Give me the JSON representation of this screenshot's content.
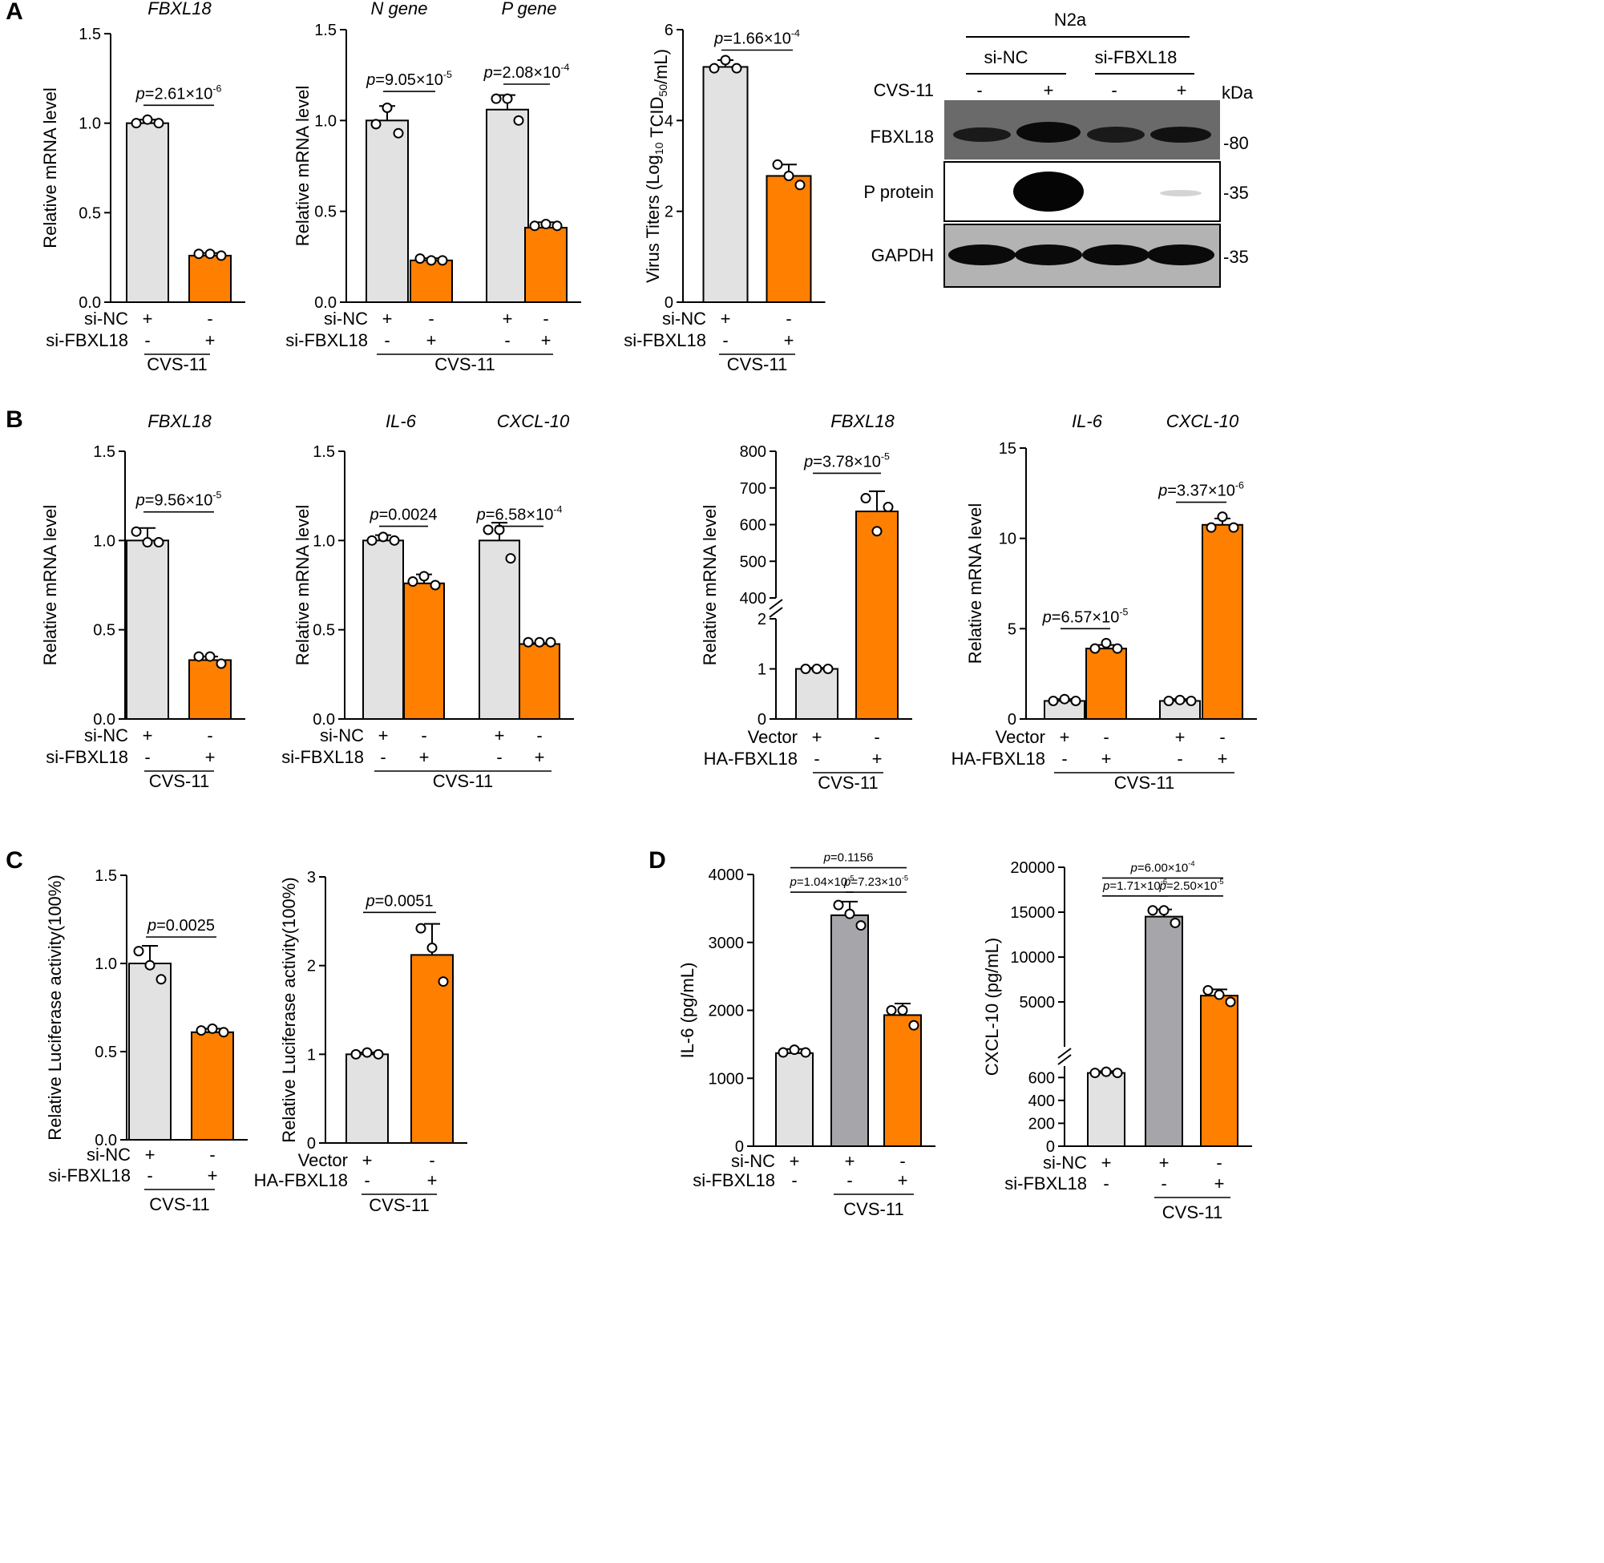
{
  "colors": {
    "gray": "#e2e2e2",
    "orange": "#ff7f00",
    "darkgray": "#a6a6aa",
    "axis": "#000000"
  },
  "panel_labels": [
    "A",
    "B",
    "C",
    "D"
  ],
  "chart_data": [
    {
      "id": "A1",
      "type": "bar",
      "title": "FBXL18",
      "ylabel": "Relative mRNA level",
      "ylim": [
        0,
        1.5
      ],
      "yticks": [
        "0.0",
        "0.5",
        "1.0",
        "1.5"
      ],
      "yticks_v": [
        0,
        0.5,
        1,
        1.5
      ],
      "bars": [
        {
          "value": 1.0,
          "err": 0.02,
          "color": "gray",
          "points": [
            1.0,
            1.02,
            1.0
          ]
        },
        {
          "value": 0.26,
          "err": 0.015,
          "color": "orange",
          "points": [
            0.27,
            0.27,
            0.26
          ]
        }
      ],
      "pvals": [
        {
          "from": 0,
          "to": 1,
          "y": 1.1,
          "t1": "p",
          "t2": "=2.61×10",
          "sup": "-6"
        }
      ],
      "rows": [
        {
          "label": "si-NC",
          "signs": [
            "+",
            "-"
          ]
        },
        {
          "label": "si-FBXL18",
          "signs": [
            "-",
            "+"
          ]
        }
      ],
      "group": "CVS-11"
    },
    {
      "id": "A2",
      "type": "bar",
      "titles": [
        "N gene",
        "P gene"
      ],
      "ylabel": "Relative mRNA level",
      "ylim": [
        0,
        1.5
      ],
      "yticks": [
        "0.0",
        "0.5",
        "1.0",
        "1.5"
      ],
      "yticks_v": [
        0,
        0.5,
        1,
        1.5
      ],
      "bars": [
        {
          "value": 1.0,
          "err": 0.08,
          "color": "gray",
          "points": [
            0.98,
            1.07,
            0.93
          ]
        },
        {
          "value": 0.23,
          "err": 0.012,
          "color": "orange",
          "points": [
            0.24,
            0.23,
            0.23
          ]
        },
        {
          "value": 1.06,
          "err": 0.08,
          "color": "gray",
          "points": [
            1.12,
            1.12,
            1.0
          ]
        },
        {
          "value": 0.41,
          "err": 0.03,
          "color": "orange",
          "points": [
            0.42,
            0.43,
            0.42
          ]
        }
      ],
      "pvals": [
        {
          "from": 0,
          "to": 1,
          "y": 1.16,
          "t1": "p",
          "t2": "=9.05×10",
          "sup": "-5"
        },
        {
          "from": 2,
          "to": 3,
          "y": 1.2,
          "t1": "p",
          "t2": "=2.08×10",
          "sup": "-4"
        }
      ],
      "rows": [
        {
          "label": "si-NC",
          "signs": [
            "+",
            "-",
            "+",
            "-"
          ]
        },
        {
          "label": "si-FBXL18",
          "signs": [
            "-",
            "+",
            "-",
            "+"
          ]
        }
      ],
      "group": "CVS-11"
    },
    {
      "id": "A3",
      "type": "bar",
      "ylabel_pre": "Virus Titers (Log",
      "ylabel_sub": "10",
      "ylabel_mid": " TCID",
      "ylabel_sub2": "50",
      "ylabel_post": "/mL)",
      "ylim": [
        0,
        6
      ],
      "yticks": [
        "0",
        "2",
        "4",
        "6"
      ],
      "yticks_v": [
        0,
        2,
        4,
        6
      ],
      "bars": [
        {
          "value": 5.18,
          "err": 0.15,
          "color": "gray",
          "points": [
            5.15,
            5.33,
            5.15
          ]
        },
        {
          "value": 2.78,
          "err": 0.25,
          "color": "orange",
          "points": [
            3.03,
            2.78,
            2.58
          ]
        }
      ],
      "pvals": [
        {
          "from": 0,
          "to": 1,
          "y": 5.55,
          "t1": "p",
          "t2": "=1.66×10",
          "sup": "-4"
        }
      ],
      "rows": [
        {
          "label": "si-NC",
          "signs": [
            "+",
            "-"
          ]
        },
        {
          "label": "si-FBXL18",
          "signs": [
            "-",
            "+"
          ]
        }
      ],
      "group": "CVS-11"
    },
    {
      "id": "B1",
      "type": "bar",
      "title": "FBXL18",
      "ylabel": "Relative mRNA level",
      "ylim": [
        0,
        1.5
      ],
      "yticks": [
        "0.0",
        "0.5",
        "1.0",
        "1.5"
      ],
      "yticks_v": [
        0,
        0.5,
        1,
        1.5
      ],
      "bars": [
        {
          "value": 1.0,
          "err": 0.07,
          "color": "gray",
          "points": [
            1.05,
            0.99,
            0.99
          ]
        },
        {
          "value": 0.33,
          "err": 0.02,
          "color": "orange",
          "points": [
            0.35,
            0.35,
            0.31
          ]
        }
      ],
      "pvals": [
        {
          "from": 0,
          "to": 1,
          "y": 1.16,
          "t1": "p",
          "t2": "=9.56×10",
          "sup": "-5"
        }
      ],
      "rows": [
        {
          "label": "si-NC",
          "signs": [
            "+",
            "-"
          ]
        },
        {
          "label": "si-FBXL18",
          "signs": [
            "-",
            "+"
          ]
        }
      ],
      "group": "CVS-11"
    },
    {
      "id": "B2",
      "type": "bar",
      "titles": [
        "IL-6",
        "CXCL-10"
      ],
      "ylabel": "Relative mRNA level",
      "ylim": [
        0,
        1.5
      ],
      "yticks": [
        "0.0",
        "0.5",
        "1.0",
        "1.5"
      ],
      "yticks_v": [
        0,
        0.5,
        1,
        1.5
      ],
      "bars": [
        {
          "value": 1.0,
          "err": 0.03,
          "color": "gray",
          "points": [
            1.0,
            1.02,
            1.0
          ]
        },
        {
          "value": 0.76,
          "err": 0.05,
          "color": "orange",
          "points": [
            0.77,
            0.8,
            0.75
          ]
        },
        {
          "value": 1.0,
          "err": 0.1,
          "color": "gray",
          "points": [
            1.06,
            1.06,
            0.9
          ]
        },
        {
          "value": 0.42,
          "err": 0.005,
          "color": "orange",
          "points": [
            0.43,
            0.43,
            0.43
          ]
        }
      ],
      "pvals": [
        {
          "from": 0,
          "to": 1,
          "y": 1.08,
          "t1": "p",
          "t2": "=0.0024",
          "sup": ""
        },
        {
          "from": 2,
          "to": 3,
          "y": 1.08,
          "t1": "p",
          "t2": "=6.58×10",
          "sup": "-4"
        }
      ],
      "rows": [
        {
          "label": "si-NC",
          "signs": [
            "+",
            "-",
            "+",
            "-"
          ]
        },
        {
          "label": "si-FBXL18",
          "signs": [
            "-",
            "+",
            "-",
            "+"
          ]
        }
      ],
      "group": "CVS-11"
    },
    {
      "id": "B3",
      "type": "bar",
      "title": "FBXL18",
      "ylabel": "Relative mRNA level",
      "broken_axis": true,
      "ylim_lower": [
        0,
        2
      ],
      "ylim_upper": [
        400,
        800
      ],
      "yticks": [
        "0",
        "1",
        "2",
        "400",
        "500",
        "600",
        "700",
        "800"
      ],
      "yticks_v": [
        0,
        1,
        2,
        400,
        500,
        600,
        700,
        800
      ],
      "bars": [
        {
          "value": 1.0,
          "err": 0.02,
          "color": "gray",
          "points": [
            1.0,
            1.0,
            1.0
          ]
        },
        {
          "value": 636,
          "err": 55,
          "color": "orange",
          "points": [
            672,
            582,
            648
          ]
        }
      ],
      "pvals": [
        {
          "from": 0,
          "to": 1,
          "y": 740,
          "t1": "p",
          "t2": "=3.78×10",
          "sup": "-5"
        }
      ],
      "rows": [
        {
          "label": "Vector",
          "signs": [
            "+",
            "-"
          ]
        },
        {
          "label": "HA-FBXL18",
          "signs": [
            "-",
            "+"
          ]
        }
      ],
      "group": "CVS-11"
    },
    {
      "id": "B4",
      "type": "bar",
      "titles": [
        "IL-6",
        "CXCL-10"
      ],
      "ylabel": "Relative mRNA level",
      "ylim": [
        0,
        15
      ],
      "yticks": [
        "0",
        "5",
        "10",
        "15"
      ],
      "yticks_v": [
        0,
        5,
        10,
        15
      ],
      "bars": [
        {
          "value": 1.0,
          "err": 0.1,
          "color": "gray",
          "points": [
            1.0,
            1.1,
            1.0
          ]
        },
        {
          "value": 3.9,
          "err": 0.2,
          "color": "orange",
          "points": [
            3.9,
            4.2,
            3.9
          ]
        },
        {
          "value": 1.0,
          "err": 0.1,
          "color": "gray",
          "points": [
            1.0,
            1.05,
            1.0
          ]
        },
        {
          "value": 10.75,
          "err": 0.35,
          "color": "orange",
          "points": [
            10.6,
            11.2,
            10.6
          ]
        }
      ],
      "pvals": [
        {
          "from": 0,
          "to": 1,
          "y": 5.0,
          "t1": "p",
          "t2": "=6.57×10",
          "sup": "-5"
        },
        {
          "from": 2,
          "to": 3,
          "y": 12.0,
          "t1": "p",
          "t2": "=3.37×10",
          "sup": "-6"
        }
      ],
      "rows": [
        {
          "label": "Vector",
          "signs": [
            "+",
            "-",
            "+",
            "-"
          ]
        },
        {
          "label": "HA-FBXL18",
          "signs": [
            "-",
            "+",
            "-",
            "+"
          ]
        }
      ],
      "group": "CVS-11"
    },
    {
      "id": "C1",
      "type": "bar",
      "ylabel": "Relative Luciferase activity(100%)",
      "ylim": [
        0,
        1.5
      ],
      "yticks": [
        "0.0",
        "0.5",
        "1.0",
        "1.5"
      ],
      "yticks_v": [
        0,
        0.5,
        1,
        1.5
      ],
      "bars": [
        {
          "value": 1.0,
          "err": 0.1,
          "color": "gray",
          "points": [
            1.07,
            0.99,
            0.91
          ]
        },
        {
          "value": 0.61,
          "err": 0.02,
          "color": "orange",
          "points": [
            0.62,
            0.63,
            0.61
          ]
        }
      ],
      "pvals": [
        {
          "from": 0,
          "to": 1,
          "y": 1.15,
          "t1": "p",
          "t2": "=0.0025",
          "sup": ""
        }
      ],
      "rows": [
        {
          "label": "si-NC",
          "signs": [
            "+",
            "-"
          ]
        },
        {
          "label": "si-FBXL18",
          "signs": [
            "-",
            "+"
          ]
        }
      ],
      "group": "CVS-11"
    },
    {
      "id": "C2",
      "type": "bar",
      "ylabel": "Relative Luciferase activity(100%)",
      "ylim": [
        0,
        3
      ],
      "yticks": [
        "0",
        "1",
        "2",
        "3"
      ],
      "yticks_v": [
        0,
        1,
        2,
        3
      ],
      "bars": [
        {
          "value": 1.0,
          "err": 0.02,
          "color": "gray",
          "points": [
            1.0,
            1.02,
            1.0
          ]
        },
        {
          "value": 2.12,
          "err": 0.35,
          "color": "orange",
          "points": [
            2.42,
            2.2,
            1.82
          ]
        }
      ],
      "pvals": [
        {
          "from": 0,
          "to": 1,
          "y": 2.6,
          "t1": "p",
          "t2": "=0.0051",
          "sup": ""
        }
      ],
      "rows": [
        {
          "label": "Vector",
          "signs": [
            "+",
            "-"
          ]
        },
        {
          "label": "HA-FBXL18",
          "signs": [
            "-",
            "+"
          ]
        }
      ],
      "group": "CVS-11"
    },
    {
      "id": "D1",
      "type": "bar",
      "ylabel": "IL-6 (pg/mL)",
      "ylim": [
        0,
        4000
      ],
      "yticks": [
        "0",
        "1000",
        "2000",
        "3000",
        "4000"
      ],
      "yticks_v": [
        0,
        1000,
        2000,
        3000,
        4000
      ],
      "bars": [
        {
          "value": 1370,
          "err": 60,
          "color": "gray",
          "points": [
            1380,
            1420,
            1380
          ]
        },
        {
          "value": 3400,
          "err": 200,
          "color": "darkgray",
          "points": [
            3550,
            3420,
            3250
          ]
        },
        {
          "value": 1930,
          "err": 170,
          "color": "orange",
          "points": [
            2000,
            2000,
            1780
          ]
        }
      ],
      "pvals": [
        {
          "from": 0,
          "to": 1,
          "y": 3740,
          "t1": "p",
          "t2": "=1.04×10",
          "sup": "-5",
          "small": true
        },
        {
          "from": 1,
          "to": 2,
          "y": 3740,
          "t1": "p",
          "t2": "=7.23×10",
          "sup": "-5",
          "small": true
        },
        {
          "from": 0,
          "to": 2,
          "y": 4100,
          "t1": "p",
          "t2": "=0.1156",
          "sup": "",
          "small": true
        }
      ],
      "rows": [
        {
          "label": "si-NC",
          "signs": [
            "+",
            "+",
            "-"
          ]
        },
        {
          "label": "si-FBXL18",
          "signs": [
            "-",
            "-",
            "+"
          ]
        }
      ],
      "group": "CVS-11",
      "group_from": 1
    },
    {
      "id": "D2",
      "type": "bar",
      "ylabel": "CXCL-10 (pg/mL)",
      "broken_axis": true,
      "ylim_lower": [
        0,
        700
      ],
      "ylim_upper": [
        0,
        20000
      ],
      "yticks": [
        "0",
        "200",
        "400",
        "600",
        "5000",
        "10000",
        "15000",
        "20000"
      ],
      "yticks_v": [
        0,
        200,
        400,
        600,
        5000,
        10000,
        15000,
        20000
      ],
      "bars": [
        {
          "value": 640,
          "err": 15,
          "color": "gray",
          "points": [
            640,
            650,
            640
          ]
        },
        {
          "value": 14500,
          "err": 800,
          "color": "darkgray",
          "points": [
            15200,
            15200,
            13800
          ]
        },
        {
          "value": 5700,
          "err": 700,
          "color": "orange",
          "points": [
            6300,
            5800,
            5000
          ]
        }
      ],
      "pvals": [
        {
          "from": 0,
          "to": 1,
          "y": 16800,
          "t1": "p",
          "t2": "=1.71×10",
          "sup": "-6",
          "small": true
        },
        {
          "from": 1,
          "to": 2,
          "y": 16800,
          "t1": "p",
          "t2": "=2.50×10",
          "sup": "-5",
          "small": true
        },
        {
          "from": 0,
          "to": 2,
          "y": 18800,
          "t1": "p",
          "t2": "=6.00×10",
          "sup": "-4",
          "small": true
        }
      ],
      "rows": [
        {
          "label": "si-NC",
          "signs": [
            "+",
            "+",
            "-"
          ]
        },
        {
          "label": "si-FBXL18",
          "signs": [
            "-",
            "-",
            "+"
          ]
        }
      ],
      "group": "CVS-11",
      "group_from": 1
    }
  ],
  "western_blot": {
    "cell": "N2a",
    "groups": [
      "si-NC",
      "si-FBXL18"
    ],
    "treatment": "CVS-11",
    "signs": [
      "-",
      "+",
      "-",
      "+"
    ],
    "unit": "kDa",
    "rows": [
      {
        "label": "FBXL18",
        "marker": "-80"
      },
      {
        "label": "P protein",
        "marker": "-35"
      },
      {
        "label": "GAPDH",
        "marker": "-35"
      }
    ]
  }
}
